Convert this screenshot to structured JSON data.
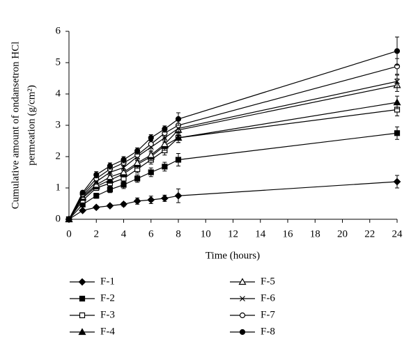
{
  "chart_data": {
    "type": "line",
    "xlabel": "Time (hours)",
    "ylabel": [
      "Cumulative amount of ondansetron HCl",
      "permeation (g/cm²)"
    ],
    "x": [
      0,
      1,
      2,
      3,
      4,
      5,
      6,
      7,
      8,
      24
    ],
    "xlim": [
      0,
      24
    ],
    "xticks": [
      0,
      2,
      4,
      6,
      8,
      10,
      12,
      14,
      16,
      18,
      20,
      22,
      24
    ],
    "ylim": [
      0,
      6
    ],
    "yticks": [
      0,
      1,
      2,
      3,
      4,
      5,
      6
    ],
    "grid": false,
    "series": [
      {
        "name": "F-1",
        "color": "#000000",
        "marker": "diamond-filled",
        "values": [
          0,
          0.28,
          0.38,
          0.43,
          0.48,
          0.58,
          0.62,
          0.67,
          0.75,
          1.2
        ],
        "errors": [
          0,
          0.04,
          0.05,
          0.05,
          0.06,
          0.1,
          0.12,
          0.1,
          0.22,
          0.2
        ]
      },
      {
        "name": "F-2",
        "color": "#000000",
        "marker": "square-filled",
        "values": [
          0,
          0.47,
          0.75,
          0.95,
          1.1,
          1.3,
          1.5,
          1.68,
          1.9,
          2.75
        ],
        "errors": [
          0,
          0.05,
          0.08,
          0.1,
          0.12,
          0.12,
          0.14,
          0.14,
          0.2,
          0.2
        ]
      },
      {
        "name": "F-3",
        "color": "#000000",
        "marker": "square-open",
        "values": [
          0,
          0.6,
          1.0,
          1.15,
          1.3,
          1.6,
          1.9,
          2.2,
          2.6,
          3.5
        ],
        "errors": [
          0,
          0.05,
          0.08,
          0.1,
          0.1,
          0.12,
          0.14,
          0.15,
          0.15,
          0.2
        ]
      },
      {
        "name": "F-4",
        "color": "#000000",
        "marker": "triangle-filled",
        "values": [
          0,
          0.68,
          1.05,
          1.25,
          1.45,
          1.75,
          2.0,
          2.35,
          2.6,
          3.73
        ],
        "errors": [
          0,
          0.05,
          0.08,
          0.1,
          0.1,
          0.12,
          0.12,
          0.15,
          0.15,
          0.2
        ]
      },
      {
        "name": "F-5",
        "color": "#000000",
        "marker": "triangle-open",
        "values": [
          0,
          0.72,
          1.1,
          1.35,
          1.5,
          1.8,
          2.05,
          2.4,
          2.85,
          4.28
        ],
        "errors": [
          0,
          0.05,
          0.08,
          0.1,
          0.1,
          0.12,
          0.12,
          0.15,
          0.15,
          0.2
        ]
      },
      {
        "name": "F-6",
        "color": "#000000",
        "marker": "cross",
        "values": [
          0,
          0.75,
          1.2,
          1.5,
          1.65,
          2.0,
          2.3,
          2.6,
          2.9,
          4.4
        ],
        "errors": [
          0,
          0.05,
          0.08,
          0.1,
          0.1,
          0.12,
          0.12,
          0.15,
          0.15,
          0.2
        ]
      },
      {
        "name": "F-7",
        "color": "#000000",
        "marker": "circle-open",
        "values": [
          0,
          0.8,
          1.3,
          1.6,
          1.8,
          2.05,
          2.4,
          2.75,
          3.0,
          4.88
        ],
        "errors": [
          0,
          0.05,
          0.1,
          0.1,
          0.1,
          0.12,
          0.12,
          0.15,
          0.2,
          0.25
        ]
      },
      {
        "name": "F-8",
        "color": "#000000",
        "marker": "circle-filled",
        "values": [
          0,
          0.85,
          1.42,
          1.7,
          1.9,
          2.18,
          2.6,
          2.88,
          3.2,
          5.37
        ],
        "errors": [
          0,
          0.05,
          0.1,
          0.1,
          0.1,
          0.1,
          0.1,
          0.1,
          0.2,
          0.45
        ]
      }
    ]
  }
}
